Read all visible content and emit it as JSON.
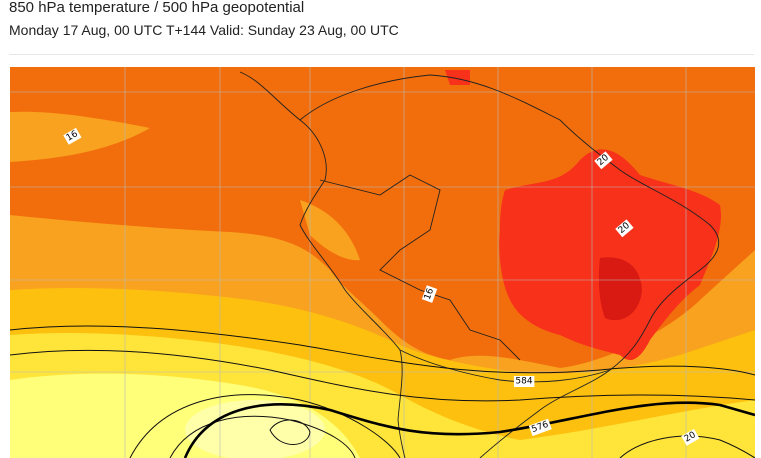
{
  "header": {
    "title": "850 hPa temperature / 500 hPa geopotential",
    "subtitle": "Monday 17 Aug, 00 UTC T+144 Valid: Sunday 23 Aug, 00 UTC"
  },
  "map": {
    "labels": [
      {
        "text": "16"
      },
      {
        "text": "20"
      },
      {
        "text": "20"
      },
      {
        "text": "16"
      },
      {
        "text": "584"
      },
      {
        "text": "576"
      },
      {
        "text": "20"
      }
    ]
  }
}
